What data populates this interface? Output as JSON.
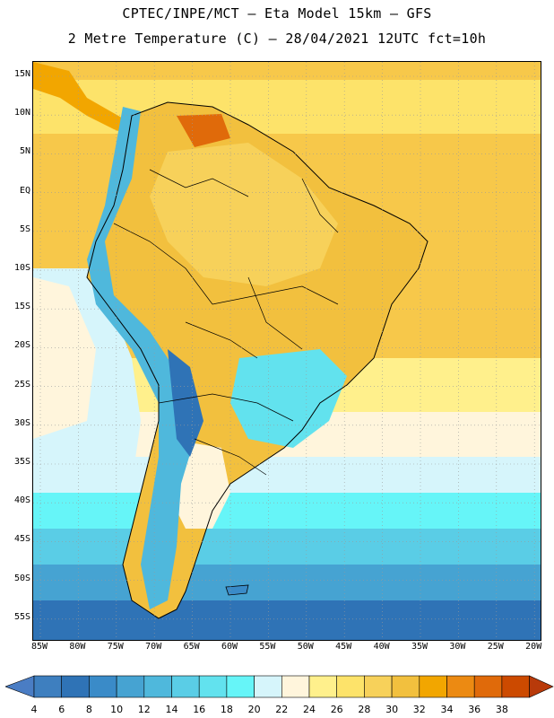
{
  "title_line1": "CPTEC/INPE/MCT –  Eta Model 15km – GFS",
  "title_line2": "2 Metre Temperature (C) – 28/04/2021 12UTC fct=10h",
  "lat_labels": [
    "15N",
    "10N",
    "5N",
    "EQ",
    "5S",
    "10S",
    "15S",
    "20S",
    "25S",
    "30S",
    "35S",
    "40S",
    "45S",
    "50S",
    "55S"
  ],
  "lon_labels": [
    "85W",
    "80W",
    "75W",
    "70W",
    "65W",
    "60W",
    "55W",
    "50W",
    "45W",
    "40W",
    "35W",
    "30W",
    "25W",
    "20W"
  ],
  "colorbar": {
    "labels": [
      "4",
      "6",
      "8",
      "10",
      "12",
      "14",
      "16",
      "18",
      "20",
      "22",
      "24",
      "26",
      "28",
      "30",
      "32",
      "34",
      "36",
      "38"
    ],
    "colors": [
      "#3e7fbf",
      "#2f73b6",
      "#3a8bc8",
      "#46a3d2",
      "#4fb8dc",
      "#5acde6",
      "#62e2ee",
      "#66f5f8",
      "#d6f5fb",
      "#fff5dc",
      "#fff08c",
      "#fde36a",
      "#f7d15a",
      "#f2c03e",
      "#f2a600",
      "#ec8a12",
      "#e06a0a",
      "#cc4a00",
      "#b83a0a"
    ],
    "low_cap_color": "#4a7dc4",
    "high_cap_color": "#b83a0a"
  },
  "map_colors": {
    "ocean_north": "#f7c84a",
    "ocean_mid": "#ffe9a0",
    "land": "#f2c03e",
    "andes": "#4fb8dc",
    "borders": "#000000",
    "grid": "#9a9a9a"
  }
}
